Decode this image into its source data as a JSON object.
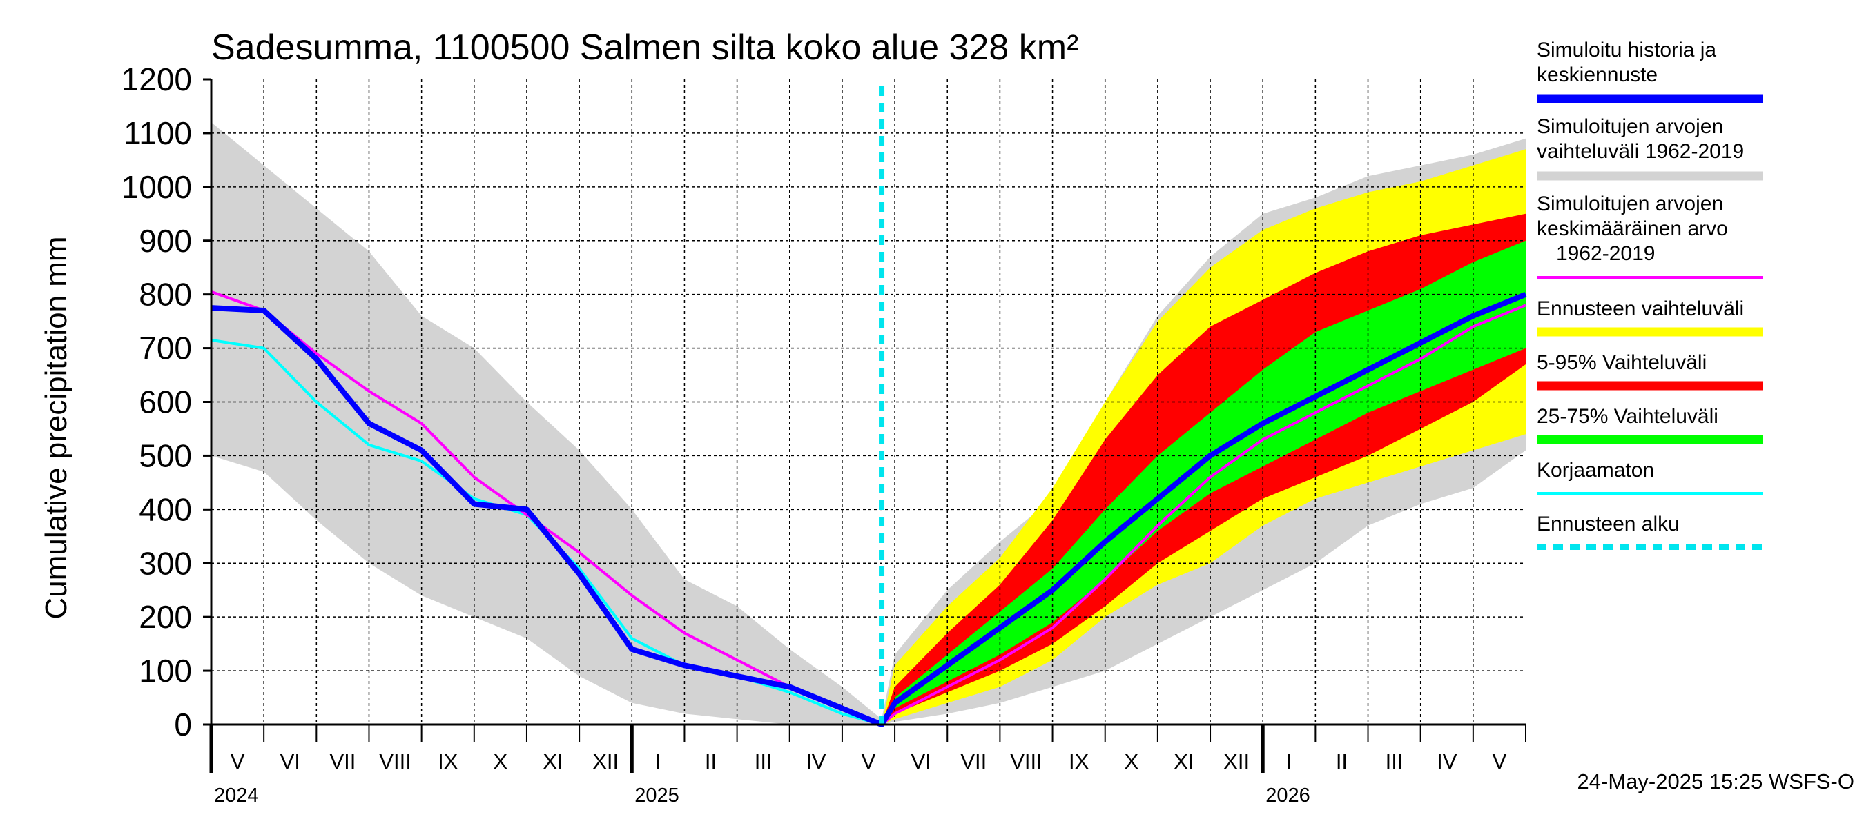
{
  "chart_data": {
    "type": "area",
    "title": "Sadesumma, 1100500 Salmen silta koko alue 328 km²",
    "ylabel": "Cumulative precipitation   mm",
    "xlabel": "",
    "ylim": [
      0,
      1200
    ],
    "yticks": [
      0,
      100,
      200,
      300,
      400,
      500,
      600,
      700,
      800,
      900,
      1000,
      1100,
      1200
    ],
    "grid": true,
    "x_unit": "months since 1 May 2024",
    "xlim": [
      0,
      25
    ],
    "forecast_start": 12.75,
    "months": [
      {
        "label": "V",
        "x": 0
      },
      {
        "label": "VI",
        "x": 1
      },
      {
        "label": "VII",
        "x": 2
      },
      {
        "label": "VIII",
        "x": 3
      },
      {
        "label": "IX",
        "x": 4
      },
      {
        "label": "X",
        "x": 5
      },
      {
        "label": "XI",
        "x": 6
      },
      {
        "label": "XII",
        "x": 7
      },
      {
        "label": "I",
        "x": 8
      },
      {
        "label": "II",
        "x": 9
      },
      {
        "label": "III",
        "x": 10
      },
      {
        "label": "IV",
        "x": 11
      },
      {
        "label": "V",
        "x": 12
      },
      {
        "label": "VI",
        "x": 13
      },
      {
        "label": "VII",
        "x": 14
      },
      {
        "label": "VIII",
        "x": 15
      },
      {
        "label": "IX",
        "x": 16
      },
      {
        "label": "X",
        "x": 17
      },
      {
        "label": "XI",
        "x": 18
      },
      {
        "label": "XII",
        "x": 19
      },
      {
        "label": "I",
        "x": 20
      },
      {
        "label": "II",
        "x": 21
      },
      {
        "label": "III",
        "x": 22
      },
      {
        "label": "IV",
        "x": 23
      },
      {
        "label": "V",
        "x": 24
      }
    ],
    "years": [
      {
        "label": "2024",
        "x": 0
      },
      {
        "label": "2025",
        "x": 8
      },
      {
        "label": "2026",
        "x": 20
      }
    ],
    "bands": [
      {
        "name": "Simuloitujen arvojen vaihteluväli 1962-2019",
        "color": "#d3d3d3",
        "x": [
          0,
          1,
          2,
          3,
          4,
          5,
          6,
          7,
          8,
          9,
          10,
          11,
          12,
          12.75,
          13,
          14,
          15,
          16,
          17,
          18,
          19,
          20,
          21,
          22,
          23,
          24,
          25
        ],
        "upper": [
          1120,
          1040,
          960,
          880,
          760,
          700,
          600,
          510,
          400,
          270,
          220,
          140,
          70,
          10,
          130,
          250,
          340,
          420,
          600,
          760,
          870,
          950,
          980,
          1020,
          1040,
          1060,
          1090
        ],
        "lower": [
          500,
          470,
          380,
          300,
          240,
          200,
          160,
          90,
          40,
          20,
          10,
          0,
          0,
          0,
          5,
          20,
          40,
          70,
          100,
          150,
          200,
          250,
          300,
          370,
          410,
          440,
          510
        ]
      },
      {
        "name": "Ennusteen vaihteluväli",
        "color": "#ffff00",
        "x": [
          12.75,
          13,
          14,
          15,
          16,
          17,
          18,
          19,
          20,
          21,
          22,
          23,
          24,
          25
        ],
        "upper": [
          0,
          110,
          220,
          310,
          440,
          600,
          750,
          850,
          920,
          960,
          990,
          1010,
          1040,
          1070
        ],
        "lower": [
          0,
          10,
          40,
          70,
          120,
          200,
          260,
          300,
          370,
          420,
          450,
          480,
          510,
          540
        ]
      },
      {
        "name": "5-95% Vaihteluväli",
        "color": "#ff0000",
        "x": [
          12.75,
          13,
          14,
          15,
          16,
          17,
          18,
          19,
          20,
          21,
          22,
          23,
          24,
          25
        ],
        "upper": [
          0,
          70,
          170,
          260,
          380,
          530,
          650,
          740,
          790,
          840,
          880,
          910,
          930,
          950
        ],
        "lower": [
          0,
          20,
          60,
          100,
          150,
          220,
          300,
          360,
          420,
          460,
          500,
          550,
          600,
          670
        ]
      },
      {
        "name": "25-75% Vaihteluväli",
        "color": "#00ff00",
        "x": [
          12.75,
          13,
          14,
          15,
          16,
          17,
          18,
          19,
          20,
          21,
          22,
          23,
          24,
          25
        ],
        "upper": [
          0,
          50,
          130,
          210,
          290,
          400,
          500,
          580,
          660,
          730,
          770,
          810,
          860,
          900
        ],
        "lower": [
          0,
          30,
          80,
          130,
          190,
          270,
          360,
          430,
          480,
          530,
          580,
          620,
          660,
          700
        ]
      }
    ],
    "series": [
      {
        "name": "Korjaamaton",
        "color": "#00ffff",
        "width": 4,
        "x": [
          0,
          1,
          2,
          3,
          4,
          5,
          6,
          7,
          8,
          9,
          10,
          11,
          12,
          12.75
        ],
        "values": [
          715,
          700,
          600,
          520,
          490,
          420,
          390,
          290,
          160,
          110,
          90,
          60,
          20,
          0
        ]
      },
      {
        "name": "Simuloitujen arvojen keskimääräinen arvo 1962-2019",
        "color": "#ff00ff",
        "width": 4,
        "x": [
          0,
          1,
          2,
          3,
          4,
          5,
          6,
          7,
          8,
          9,
          10,
          11,
          12,
          12.75,
          13,
          14,
          15,
          16,
          17,
          18,
          19,
          20,
          21,
          22,
          23,
          24,
          25
        ],
        "values": [
          805,
          770,
          690,
          620,
          560,
          460,
          390,
          320,
          240,
          170,
          120,
          70,
          30,
          0,
          20,
          70,
          120,
          180,
          270,
          370,
          460,
          530,
          580,
          630,
          680,
          740,
          780
        ]
      },
      {
        "name": "Simuloitu historia ja keskiennuste",
        "color": "#0000ff",
        "width": 8,
        "x": [
          0,
          1,
          2,
          3,
          4,
          5,
          6,
          7,
          8,
          9,
          10,
          11,
          12,
          12.75,
          13,
          14,
          15,
          16,
          17,
          18,
          19,
          20,
          21,
          22,
          23,
          24,
          25
        ],
        "values": [
          775,
          770,
          680,
          560,
          510,
          410,
          400,
          280,
          140,
          110,
          90,
          70,
          30,
          0,
          40,
          110,
          180,
          250,
          340,
          420,
          500,
          560,
          610,
          660,
          710,
          760,
          800
        ]
      }
    ],
    "legend": {
      "placement": "right",
      "entries": [
        {
          "label": "Simuloitu historia ja keskiennuste",
          "lines": [
            "Simuloitu historia ja",
            "keskiennuste"
          ],
          "color": "#0000ff",
          "style": "thick"
        },
        {
          "label": "Simuloitujen arvojen vaihteluväli 1962-2019",
          "lines": [
            "Simuloitujen arvojen",
            "vaihteluväli 1962-2019"
          ],
          "color": "#d3d3d3",
          "style": "thick"
        },
        {
          "label": "Simuloitujen arvojen keskimääräinen arvo 1962-2019",
          "lines": [
            "Simuloitujen arvojen",
            "keskimääräinen arvo",
            "1962-2019"
          ],
          "color": "#ff00ff",
          "style": "thin"
        },
        {
          "label": "Ennusteen vaihteluväli",
          "lines": [
            "Ennusteen vaihteluväli"
          ],
          "color": "#ffff00",
          "style": "thick"
        },
        {
          "label": "5-95% Vaihteluväli",
          "lines": [
            "5-95% Vaihteluväli"
          ],
          "color": "#ff0000",
          "style": "thick"
        },
        {
          "label": "25-75% Vaihteluväli",
          "lines": [
            "25-75% Vaihteluväli"
          ],
          "color": "#00ff00",
          "style": "thick"
        },
        {
          "label": "Korjaamaton",
          "lines": [
            "Korjaamaton"
          ],
          "color": "#00ffff",
          "style": "thin"
        },
        {
          "label": "Ennusteen alku",
          "lines": [
            "Ennusteen alku"
          ],
          "color": "#00e5ee",
          "style": "dashed"
        }
      ]
    },
    "timestamp": "24-May-2025 15:25 WSFS-O"
  }
}
